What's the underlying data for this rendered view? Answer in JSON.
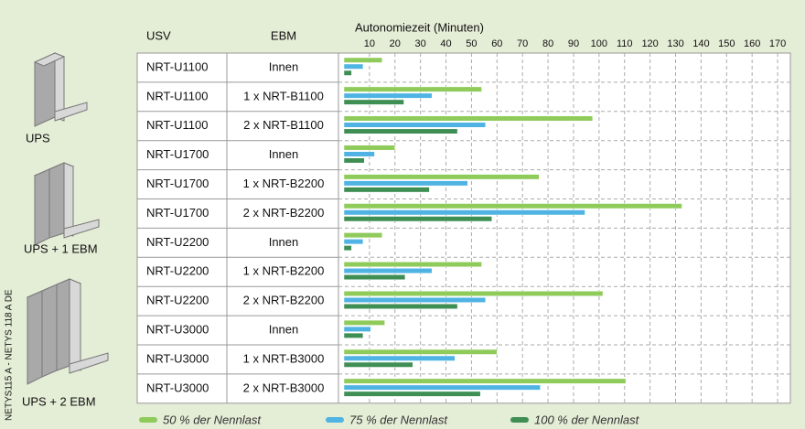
{
  "chart_data": {
    "type": "hbar",
    "title": "Autonomiezeit (Minuten)",
    "columns": [
      "USV",
      "EBM"
    ],
    "rows": [
      [
        "NRT-U1100",
        "Innen"
      ],
      [
        "NRT-U1100",
        "1 x NRT-B1100"
      ],
      [
        "NRT-U1100",
        "2 x NRT-B1100"
      ],
      [
        "NRT-U1700",
        "Innen"
      ],
      [
        "NRT-U1700",
        "1 x NRT-B2200"
      ],
      [
        "NRT-U1700",
        "2 x NRT-B2200"
      ],
      [
        "NRT-U2200",
        "Innen"
      ],
      [
        "NRT-U2200",
        "1 x NRT-B2200"
      ],
      [
        "NRT-U2200",
        "2 x NRT-B2200"
      ],
      [
        "NRT-U3000",
        "Innen"
      ],
      [
        "NRT-U3000",
        "1 x NRT-B3000"
      ],
      [
        "NRT-U3000",
        "2 x NRT-B3000"
      ]
    ],
    "series": [
      {
        "name": "50 % der Nennlast",
        "color": "#8fcb5a",
        "values": [
          15,
          54,
          97.5,
          20,
          76.5,
          132.5,
          15,
          54,
          101.5,
          16,
          60,
          110.5
        ]
      },
      {
        "name": "75 % der Nennlast",
        "color": "#4fb3e3",
        "values": [
          7.5,
          34.5,
          55.5,
          12,
          48.5,
          94.5,
          7.5,
          34.5,
          55.5,
          10.5,
          43.5,
          77
        ]
      },
      {
        "name": "100 % der Nennlast",
        "color": "#3f8f55",
        "values": [
          3,
          23.5,
          44.5,
          8,
          33.5,
          58,
          3,
          24,
          44.5,
          7.5,
          27,
          53.5
        ]
      }
    ],
    "xlim": [
      0,
      175
    ],
    "xticks": [
      10,
      20,
      30,
      40,
      50,
      60,
      70,
      80,
      90,
      100,
      110,
      120,
      130,
      140,
      150,
      160,
      170
    ],
    "grid": true
  },
  "images": [
    "UPS",
    "UPS + 1 EBM",
    "UPS + 2 EBM"
  ],
  "side_note": "NETYS115 A - NETYS 118 A DE"
}
